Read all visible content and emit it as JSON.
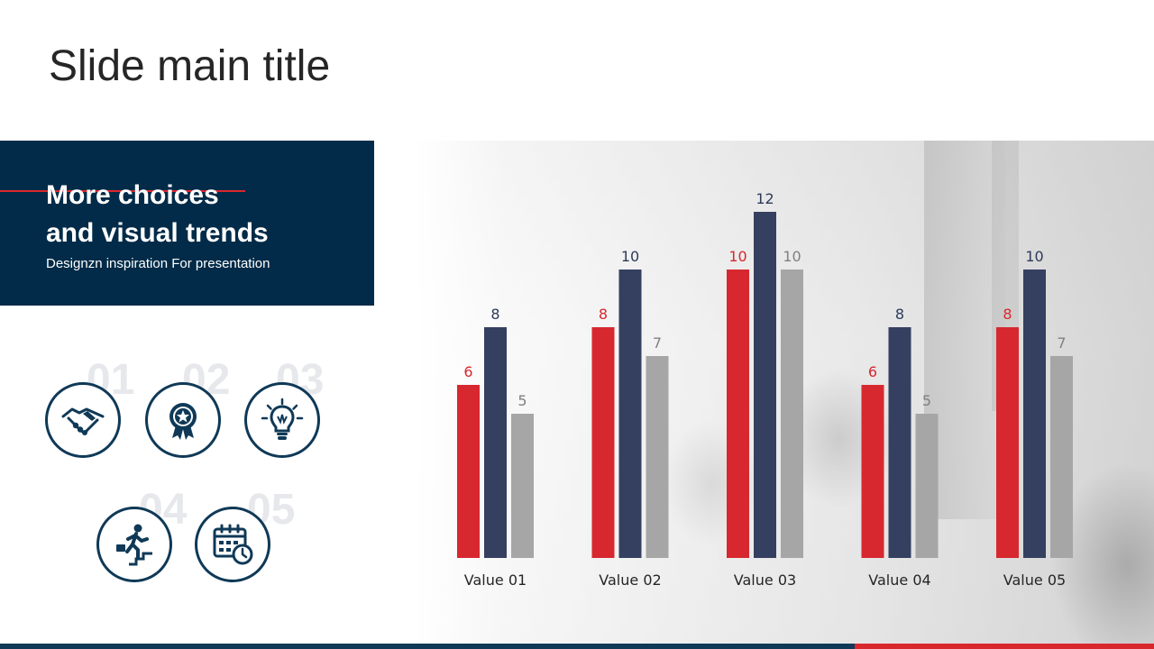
{
  "slide": {
    "title": "Slide main title"
  },
  "banner": {
    "heading_line1": "More choices",
    "heading_line2": "and visual trends",
    "subtitle": "Designzn inspiration For presentation"
  },
  "steps": [
    {
      "number": "01",
      "icon": "handshake-icon"
    },
    {
      "number": "02",
      "icon": "award-ribbon-icon"
    },
    {
      "number": "03",
      "icon": "lightbulb-icon"
    },
    {
      "number": "04",
      "icon": "climbing-stairs-icon"
    },
    {
      "number": "05",
      "icon": "calendar-clock-icon"
    }
  ],
  "colors": {
    "navy": "#0f3957",
    "banner": "#012b48",
    "red": "#d9272e",
    "series_red": "#d7282f",
    "series_navy": "#354060",
    "series_gray": "#a6a6a6"
  },
  "chart_data": {
    "type": "bar",
    "categories": [
      "Value 01",
      "Value 02",
      "Value 03",
      "Value 04",
      "Value 05"
    ],
    "series": [
      {
        "values": [
          6,
          8,
          10,
          6,
          8
        ],
        "color": "#d7282f"
      },
      {
        "values": [
          8,
          10,
          12,
          8,
          10
        ],
        "color": "#354060"
      },
      {
        "values": [
          5,
          7,
          10,
          5,
          7
        ],
        "color": "#a6a6a6"
      }
    ],
    "ylim": [
      0,
      12
    ],
    "grid": false,
    "legend": "none",
    "data_labels": true
  }
}
